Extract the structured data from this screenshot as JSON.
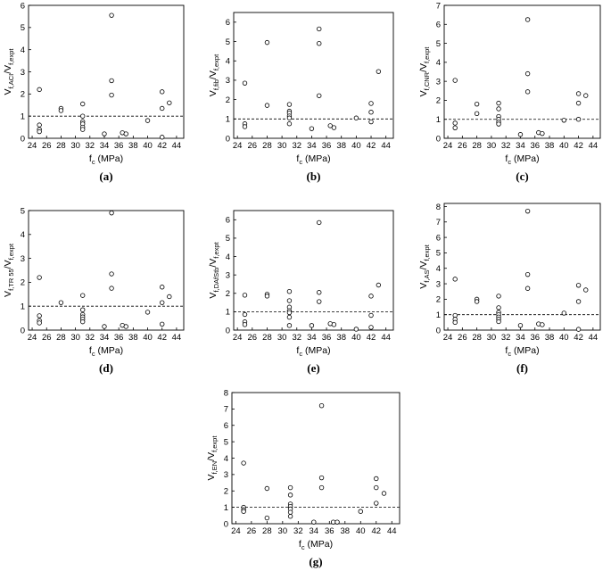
{
  "figure": {
    "background": "#ffffff",
    "marker_color": "#000000",
    "reference_line_color": "#000000"
  },
  "chart_data": [
    {
      "id": "a",
      "panel_label": "(a)",
      "type": "scatter",
      "ylabel_main": "V",
      "ylabel_sub1": "f,ACI",
      "ylabel_mid": "/V",
      "ylabel_sub2": "f,expt",
      "xlabel_main": "f",
      "xlabel_sub": "c",
      "xlabel_unit": " (MPa)",
      "xlim": [
        23.5,
        45
      ],
      "ylim": [
        0,
        6
      ],
      "xticks": [
        24,
        26,
        28,
        30,
        32,
        34,
        36,
        38,
        40,
        42,
        44
      ],
      "yticks": [
        0,
        1,
        2,
        3,
        4,
        5,
        6
      ],
      "reference_line": {
        "y": 1,
        "style": "dashed"
      },
      "points": [
        [
          25,
          2.2
        ],
        [
          25,
          0.6
        ],
        [
          25,
          0.4
        ],
        [
          25,
          0.3
        ],
        [
          28,
          1.35
        ],
        [
          28,
          1.25
        ],
        [
          31,
          1.55
        ],
        [
          31,
          1.0
        ],
        [
          31,
          0.75
        ],
        [
          31,
          0.65
        ],
        [
          31,
          0.5
        ],
        [
          31,
          0.4
        ],
        [
          34,
          0.2
        ],
        [
          35,
          5.55
        ],
        [
          35,
          2.6
        ],
        [
          35,
          1.95
        ],
        [
          36.5,
          0.25
        ],
        [
          37,
          0.2
        ],
        [
          40,
          0.8
        ],
        [
          42,
          2.1
        ],
        [
          42,
          1.35
        ],
        [
          42,
          0.05
        ],
        [
          43,
          1.6
        ]
      ]
    },
    {
      "id": "b",
      "panel_label": "(b)",
      "type": "scatter",
      "ylabel_main": "V",
      "ylabel_sub1": "f,fib",
      "ylabel_mid": "/V",
      "ylabel_sub2": "f,expt",
      "xlabel_main": "f",
      "xlabel_sub": "c",
      "xlabel_unit": " (MPa)",
      "xlim": [
        23.5,
        45
      ],
      "ylim": [
        0,
        6.5
      ],
      "xticks": [
        24,
        26,
        28,
        30,
        32,
        34,
        36,
        38,
        40,
        42,
        44
      ],
      "yticks": [
        0,
        1,
        2,
        3,
        4,
        5,
        6
      ],
      "reference_line": {
        "y": 1,
        "style": "dashed"
      },
      "points": [
        [
          25,
          2.85
        ],
        [
          25,
          0.75
        ],
        [
          25,
          0.6
        ],
        [
          28,
          4.95
        ],
        [
          28,
          1.7
        ],
        [
          31,
          1.75
        ],
        [
          31,
          1.4
        ],
        [
          31,
          1.3
        ],
        [
          31,
          1.15
        ],
        [
          31,
          1.05
        ],
        [
          31,
          0.75
        ],
        [
          34,
          0.5
        ],
        [
          35,
          5.65
        ],
        [
          35,
          4.9
        ],
        [
          35,
          2.2
        ],
        [
          36.5,
          0.65
        ],
        [
          37,
          0.55
        ],
        [
          40,
          1.05
        ],
        [
          42,
          1.8
        ],
        [
          42,
          1.35
        ],
        [
          42,
          0.85
        ],
        [
          43,
          3.45
        ]
      ]
    },
    {
      "id": "c",
      "panel_label": "(c)",
      "type": "scatter",
      "ylabel_main": "V",
      "ylabel_sub1": "f,CNR",
      "ylabel_mid": "/V",
      "ylabel_sub2": "f,expt",
      "xlabel_main": "f",
      "xlabel_sub": "c",
      "xlabel_unit": " (MPa)",
      "xlim": [
        23.5,
        45
      ],
      "ylim": [
        0,
        7
      ],
      "xticks": [
        24,
        26,
        28,
        30,
        32,
        34,
        36,
        38,
        40,
        42,
        44
      ],
      "yticks": [
        0,
        1,
        2,
        3,
        4,
        5,
        6,
        7
      ],
      "reference_line": {
        "y": 1,
        "style": "dashed"
      },
      "points": [
        [
          25,
          3.05
        ],
        [
          25,
          0.8
        ],
        [
          25,
          0.55
        ],
        [
          28,
          1.8
        ],
        [
          28,
          1.3
        ],
        [
          31,
          1.85
        ],
        [
          31,
          1.55
        ],
        [
          31,
          1.15
        ],
        [
          31,
          1.0
        ],
        [
          31,
          0.85
        ],
        [
          31,
          0.75
        ],
        [
          34,
          0.2
        ],
        [
          35,
          6.25
        ],
        [
          35,
          3.4
        ],
        [
          35,
          2.45
        ],
        [
          36.5,
          0.3
        ],
        [
          37,
          0.25
        ],
        [
          40,
          0.95
        ],
        [
          42,
          2.35
        ],
        [
          42,
          1.85
        ],
        [
          42,
          1.0
        ],
        [
          43,
          2.25
        ]
      ]
    },
    {
      "id": "d",
      "panel_label": "(d)",
      "type": "scatter",
      "ylabel_main": "V",
      "ylabel_sub1": "f,TR 55",
      "ylabel_mid": "/V",
      "ylabel_sub2": "f,expt",
      "xlabel_main": "f",
      "xlabel_sub": "c",
      "xlabel_unit": " (MPa)",
      "xlim": [
        23.5,
        45
      ],
      "ylim": [
        0,
        5
      ],
      "xticks": [
        24,
        26,
        28,
        30,
        32,
        34,
        36,
        38,
        40,
        42,
        44
      ],
      "yticks": [
        0,
        1,
        2,
        3,
        4,
        5
      ],
      "reference_line": {
        "y": 1,
        "style": "dashed"
      },
      "points": [
        [
          25,
          2.2
        ],
        [
          25,
          0.6
        ],
        [
          25,
          0.4
        ],
        [
          25,
          0.3
        ],
        [
          28,
          1.15
        ],
        [
          31,
          1.45
        ],
        [
          31,
          0.85
        ],
        [
          31,
          0.65
        ],
        [
          31,
          0.55
        ],
        [
          31,
          0.45
        ],
        [
          31,
          0.35
        ],
        [
          34,
          0.15
        ],
        [
          35,
          4.9
        ],
        [
          35,
          2.35
        ],
        [
          35,
          1.75
        ],
        [
          36.5,
          0.2
        ],
        [
          37,
          0.15
        ],
        [
          40,
          0.75
        ],
        [
          42,
          1.8
        ],
        [
          42,
          1.15
        ],
        [
          42,
          0.25
        ],
        [
          43,
          1.4
        ]
      ]
    },
    {
      "id": "e",
      "panel_label": "(e)",
      "type": "scatter",
      "ylabel_main": "V",
      "ylabel_sub1": "f,DAfStb",
      "ylabel_mid": "/V",
      "ylabel_sub2": "f,expt",
      "xlabel_main": "f",
      "xlabel_sub": "c",
      "xlabel_unit": " (MPa)",
      "xlim": [
        23.5,
        45
      ],
      "ylim": [
        0,
        6.5
      ],
      "xticks": [
        24,
        26,
        28,
        30,
        32,
        34,
        36,
        38,
        40,
        42,
        44
      ],
      "yticks": [
        0,
        1,
        2,
        3,
        4,
        5,
        6
      ],
      "reference_line": {
        "y": 1,
        "style": "dashed"
      },
      "points": [
        [
          25,
          1.9
        ],
        [
          25,
          0.85
        ],
        [
          25,
          0.45
        ],
        [
          25,
          0.3
        ],
        [
          28,
          1.95
        ],
        [
          28,
          1.85
        ],
        [
          31,
          2.1
        ],
        [
          31,
          1.6
        ],
        [
          31,
          1.25
        ],
        [
          31,
          1.05
        ],
        [
          31,
          0.95
        ],
        [
          31,
          0.7
        ],
        [
          31,
          0.25
        ],
        [
          34,
          0.25
        ],
        [
          35,
          5.85
        ],
        [
          35,
          2.05
        ],
        [
          35,
          1.55
        ],
        [
          36.5,
          0.35
        ],
        [
          37,
          0.3
        ],
        [
          40,
          0.05
        ],
        [
          42,
          1.85
        ],
        [
          42,
          0.8
        ],
        [
          42,
          0.15
        ],
        [
          43,
          2.45
        ]
      ]
    },
    {
      "id": "f",
      "panel_label": "(f)",
      "type": "scatter",
      "ylabel_main": "V",
      "ylabel_sub1": "f,AS",
      "ylabel_mid": "/V",
      "ylabel_sub2": "f,expt",
      "xlabel_main": "f",
      "xlabel_sub": "c",
      "xlabel_unit": " (MPa)",
      "xlim": [
        23.5,
        45
      ],
      "ylim": [
        0,
        8.2
      ],
      "xticks": [
        24,
        26,
        28,
        30,
        32,
        34,
        36,
        38,
        40,
        42,
        44
      ],
      "yticks": [
        0,
        1,
        2,
        3,
        4,
        5,
        6,
        7,
        8
      ],
      "reference_line": {
        "y": 1,
        "style": "dashed"
      },
      "points": [
        [
          25,
          3.3
        ],
        [
          25,
          0.95
        ],
        [
          25,
          0.7
        ],
        [
          25,
          0.5
        ],
        [
          28,
          2.0
        ],
        [
          28,
          1.85
        ],
        [
          31,
          2.2
        ],
        [
          31,
          1.45
        ],
        [
          31,
          1.15
        ],
        [
          31,
          1.0
        ],
        [
          31,
          0.85
        ],
        [
          31,
          0.7
        ],
        [
          31,
          0.55
        ],
        [
          34,
          0.3
        ],
        [
          35,
          7.7
        ],
        [
          35,
          3.6
        ],
        [
          35,
          2.7
        ],
        [
          36.5,
          0.4
        ],
        [
          37,
          0.35
        ],
        [
          40,
          1.1
        ],
        [
          42,
          2.9
        ],
        [
          42,
          1.85
        ],
        [
          42,
          0.05
        ],
        [
          43,
          2.6
        ]
      ]
    },
    {
      "id": "g",
      "panel_label": "(g)",
      "type": "scatter",
      "ylabel_main": "V",
      "ylabel_sub1": "f,EN",
      "ylabel_mid": "/V",
      "ylabel_sub2": "f,expt",
      "xlabel_main": "f",
      "xlabel_sub": "c",
      "xlabel_unit": " (MPa)",
      "xlim": [
        23.5,
        45
      ],
      "ylim": [
        0,
        8
      ],
      "xticks": [
        24,
        26,
        28,
        30,
        32,
        34,
        36,
        38,
        40,
        42,
        44
      ],
      "yticks": [
        0,
        1,
        2,
        3,
        4,
        5,
        6,
        7,
        8
      ],
      "reference_line": {
        "y": 1,
        "style": "dashed"
      },
      "points": [
        [
          25,
          3.7
        ],
        [
          25,
          1.0
        ],
        [
          25,
          0.85
        ],
        [
          25,
          0.75
        ],
        [
          28,
          2.15
        ],
        [
          28,
          0.35
        ],
        [
          31,
          2.2
        ],
        [
          31,
          1.75
        ],
        [
          31,
          1.2
        ],
        [
          31,
          1.05
        ],
        [
          31,
          0.9
        ],
        [
          31,
          0.7
        ],
        [
          31,
          0.45
        ],
        [
          34,
          0.1
        ],
        [
          35,
          7.2
        ],
        [
          35,
          2.8
        ],
        [
          35,
          2.2
        ],
        [
          36.5,
          0.1
        ],
        [
          37,
          0.1
        ],
        [
          40,
          0.75
        ],
        [
          42,
          2.75
        ],
        [
          42,
          2.2
        ],
        [
          42,
          1.25
        ],
        [
          43,
          1.85
        ]
      ]
    }
  ]
}
